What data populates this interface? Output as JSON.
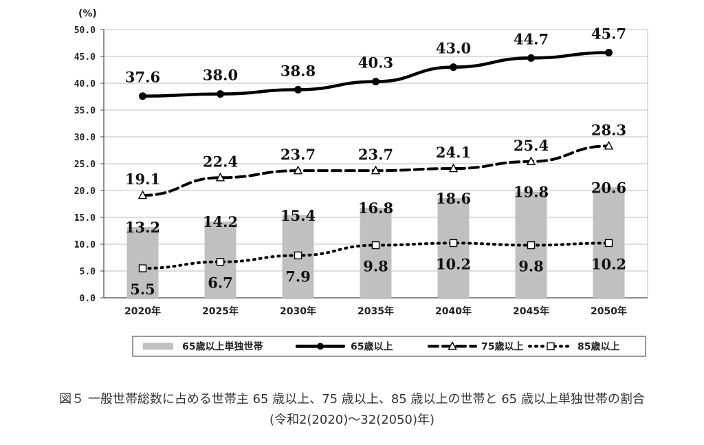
{
  "chart_data": {
    "type": "bar+line",
    "ylabel": "(%)",
    "ylim": [
      0,
      50
    ],
    "ytick_labels": [
      "0.0",
      "5.0",
      "10.0",
      "15.0",
      "20.0",
      "25.0",
      "30.0",
      "35.0",
      "40.0",
      "45.0",
      "50.0"
    ],
    "categories": [
      "2020年",
      "2025年",
      "2030年",
      "2035年",
      "2040年",
      "2045年",
      "2050年"
    ],
    "grid": true,
    "legend_position": "bottom",
    "series": [
      {
        "name": "65歳以上単独世帯",
        "kind": "bar",
        "color": "#c0c0c0",
        "values": [
          13.2,
          14.2,
          15.4,
          16.8,
          18.6,
          19.8,
          20.6
        ],
        "labels": [
          "13.2",
          "14.2",
          "15.4",
          "16.8",
          "18.6",
          "19.8",
          "20.6"
        ]
      },
      {
        "name": "65歳以上",
        "kind": "line",
        "style": "solid",
        "marker": "filled-circle",
        "color": "#000000",
        "values": [
          37.6,
          38.0,
          38.8,
          40.3,
          43.0,
          44.7,
          45.7
        ],
        "labels": [
          "37.6",
          "38.0",
          "38.8",
          "40.3",
          "43.0",
          "44.7",
          "45.7"
        ]
      },
      {
        "name": "75歳以上",
        "kind": "line",
        "style": "dashed",
        "marker": "open-triangle",
        "color": "#000000",
        "values": [
          19.1,
          22.4,
          23.7,
          23.7,
          24.1,
          25.4,
          28.3
        ],
        "labels": [
          "19.1",
          "22.4",
          "23.7",
          "23.7",
          "24.1",
          "25.4",
          "28.3"
        ]
      },
      {
        "name": "85歳以上",
        "kind": "line",
        "style": "dotted",
        "marker": "open-square",
        "color": "#000000",
        "values": [
          5.5,
          6.7,
          7.9,
          9.8,
          10.2,
          9.8,
          10.2
        ],
        "labels": [
          "5.5",
          "6.7",
          "7.9",
          "9.8",
          "10.2",
          "9.8",
          "10.2"
        ]
      }
    ]
  },
  "caption": {
    "line1": "図５ 一般世帯総数に占める世帯主 65 歳以上、75 歳以上、85 歳以上の世帯と 65 歳以上単独世帯の割合",
    "line2": "(令和2(2020)～32(2050)年)"
  }
}
